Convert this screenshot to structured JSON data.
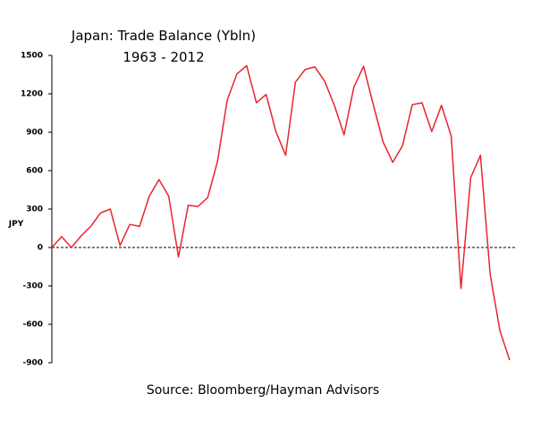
{
  "chart_data": {
    "type": "line",
    "title": "Japan: Trade Balance (Ybln)",
    "subtitle": "1963 - 2012",
    "y_label": "JPY",
    "source": "Source: Bloomberg/Hayman Advisors",
    "categories": [
      null,
      null,
      null,
      null,
      null,
      null,
      null,
      null,
      null,
      null,
      null,
      null,
      null,
      null,
      null,
      null,
      null,
      null,
      null,
      null,
      null,
      null,
      null,
      null,
      null,
      null,
      null,
      null,
      null,
      null,
      null,
      null,
      null,
      null,
      null,
      null,
      null,
      null,
      null,
      null,
      null,
      null,
      null,
      null,
      null,
      null,
      null,
      null
    ],
    "values": [
      0,
      85,
      0,
      90,
      165,
      270,
      300,
      15,
      180,
      165,
      400,
      530,
      400,
      -75,
      330,
      320,
      390,
      670,
      1150,
      1355,
      1420,
      1130,
      1195,
      905,
      720,
      1290,
      1390,
      1410,
      1300,
      1110,
      880,
      1250,
      1415,
      1115,
      825,
      665,
      795,
      1115,
      1130,
      905,
      1110,
      870,
      -320,
      545,
      720,
      -210,
      -650,
      -880
    ],
    "color": "#e8242c",
    "ylim": [
      -900,
      1500
    ],
    "yticks": [
      -900,
      -600,
      -300,
      0,
      300,
      600,
      900,
      1200,
      1500
    ],
    "grid": false
  }
}
